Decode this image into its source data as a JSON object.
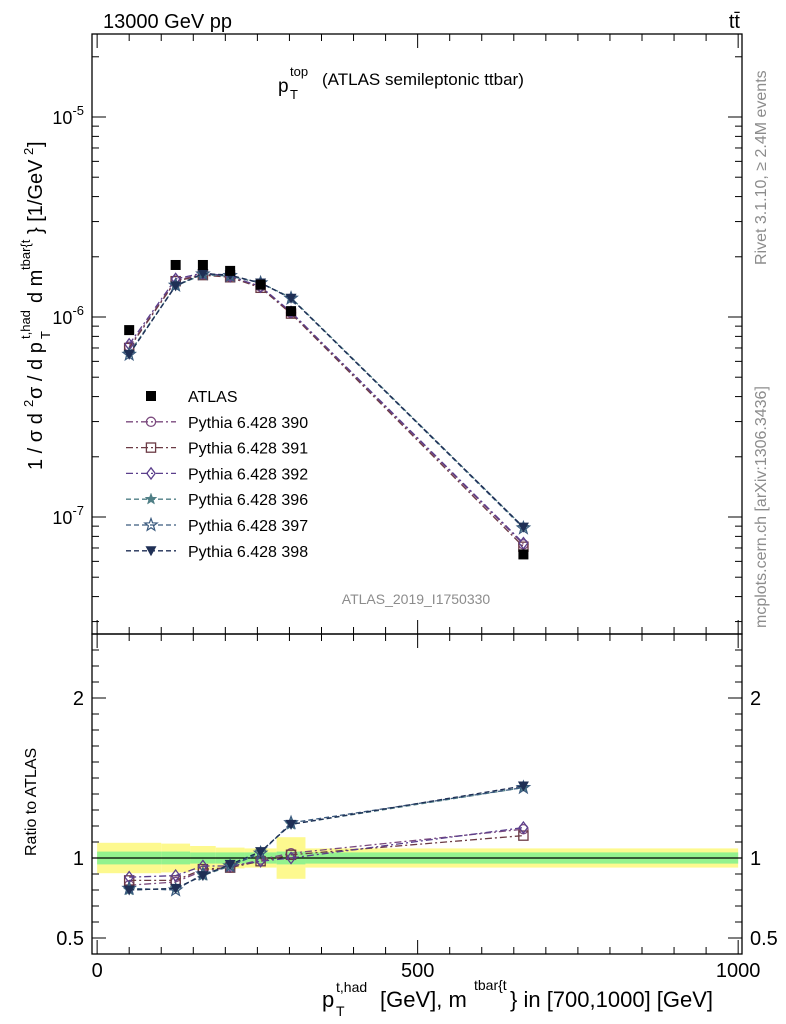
{
  "header": {
    "energy_label": "13000 GeV pp",
    "process_label": "tt̄",
    "plot_title": "p_T^top (ATLAS semileptonic ttbar)",
    "analysis_id": "ATLAS_2019_I1750330",
    "rivet_label": "Rivet 3.1.10, ≥ 2.4M events",
    "mcplots_label": "mcplots.cern.ch [arXiv:1306.3436]"
  },
  "chart_data": {
    "type": "line",
    "x_axis": {
      "range": [
        -8,
        1006
      ],
      "ticks": [
        0,
        500,
        1000
      ],
      "tick_labels": [
        "0",
        "500",
        "1000"
      ],
      "label": "p_T^t,had [GeV], m^tbar{t} in [700,1000] [GeV]"
    },
    "main_y_axis": {
      "scale": "log",
      "range": [
        2.6e-08,
        2.6e-05
      ],
      "ticks": [
        1e-07,
        1e-06,
        1e-05
      ],
      "tick_labels": [
        "10^-7",
        "10^-6",
        "10^-5"
      ],
      "label": "1 / σ d²σ / d p_T^t,had d m^tbar{t} [1/GeV²]"
    },
    "ratio_y_axis": {
      "range": [
        0.4,
        2.4
      ],
      "ticks": [
        0.5,
        1,
        2
      ],
      "tick_labels": [
        "0.5",
        "1",
        "2"
      ],
      "label": "Ratio to ATLAS"
    },
    "x": [
      50,
      122.5,
      165,
      207.5,
      255,
      302.5,
      665
    ],
    "bin_edges": [
      0,
      100,
      145,
      185,
      230,
      280,
      325,
      1000
    ],
    "data": {
      "name": "ATLAS",
      "values": [
        8.6e-07,
        1.82e-06,
        1.82e-06,
        1.7e-06,
        1.45e-06,
        1.07e-06,
        6.5e-08
      ],
      "ratio_band_inner": [
        0.04,
        0.04,
        0.035,
        0.035,
        0.035,
        0.04,
        0.035
      ],
      "ratio_band_outer": [
        0.095,
        0.09,
        0.075,
        0.065,
        0.06,
        0.13,
        0.06
      ]
    },
    "series": [
      {
        "name": "Pythia 6.428 390",
        "color": "#7b4a7e",
        "marker": "circle-open",
        "dash": "dashdot",
        "values": [
          7.1e-07,
          1.52e-06,
          1.64e-06,
          1.59e-06,
          1.42e-06,
          1.05e-06,
          7.3e-08
        ],
        "ratio": [
          0.83,
          0.85,
          0.92,
          0.94,
          0.99,
          1.03,
          1.18
        ]
      },
      {
        "name": "Pythia 6.428 391",
        "color": "#6b3a44",
        "marker": "square-open",
        "dash": "dashdot",
        "values": [
          7e-07,
          1.51e-06,
          1.62e-06,
          1.58e-06,
          1.4e-06,
          1.04e-06,
          7.1e-08
        ],
        "ratio": [
          0.86,
          0.86,
          0.93,
          0.94,
          0.98,
          1.02,
          1.14
        ]
      },
      {
        "name": "Pythia 6.428 392",
        "color": "#5b3f8c",
        "marker": "diamond-open",
        "dash": "dashdot",
        "values": [
          7.3e-07,
          1.55e-06,
          1.66e-06,
          1.6e-06,
          1.42e-06,
          1.06e-06,
          7.4e-08
        ],
        "ratio": [
          0.88,
          0.89,
          0.95,
          0.95,
          0.98,
          1.0,
          1.19
        ]
      },
      {
        "name": "Pythia 6.428 396",
        "color": "#4f7f86",
        "marker": "star-filled",
        "dash": "dashed",
        "values": [
          6.6e-07,
          1.43e-06,
          1.63e-06,
          1.6e-06,
          1.48e-06,
          1.25e-06,
          8.9e-08
        ],
        "ratio": [
          0.8,
          0.81,
          0.89,
          0.95,
          1.04,
          1.21,
          1.44
        ]
      },
      {
        "name": "Pythia 6.428 397",
        "color": "#3a5a7e",
        "marker": "star-open",
        "dash": "dashed",
        "values": [
          6.5e-07,
          1.44e-06,
          1.64e-06,
          1.61e-06,
          1.48e-06,
          1.24e-06,
          8.8e-08
        ],
        "ratio": [
          0.81,
          0.8,
          0.9,
          0.95,
          1.03,
          1.22,
          1.44
        ]
      },
      {
        "name": "Pythia 6.428 398",
        "color": "#1f2f55",
        "marker": "triangle-down-filled",
        "dash": "dashed",
        "values": [
          6.5e-07,
          1.43e-06,
          1.65e-06,
          1.62e-06,
          1.48e-06,
          1.24e-06,
          8.9e-08
        ],
        "ratio": [
          0.8,
          0.81,
          0.89,
          0.96,
          1.04,
          1.21,
          1.45
        ]
      }
    ]
  }
}
